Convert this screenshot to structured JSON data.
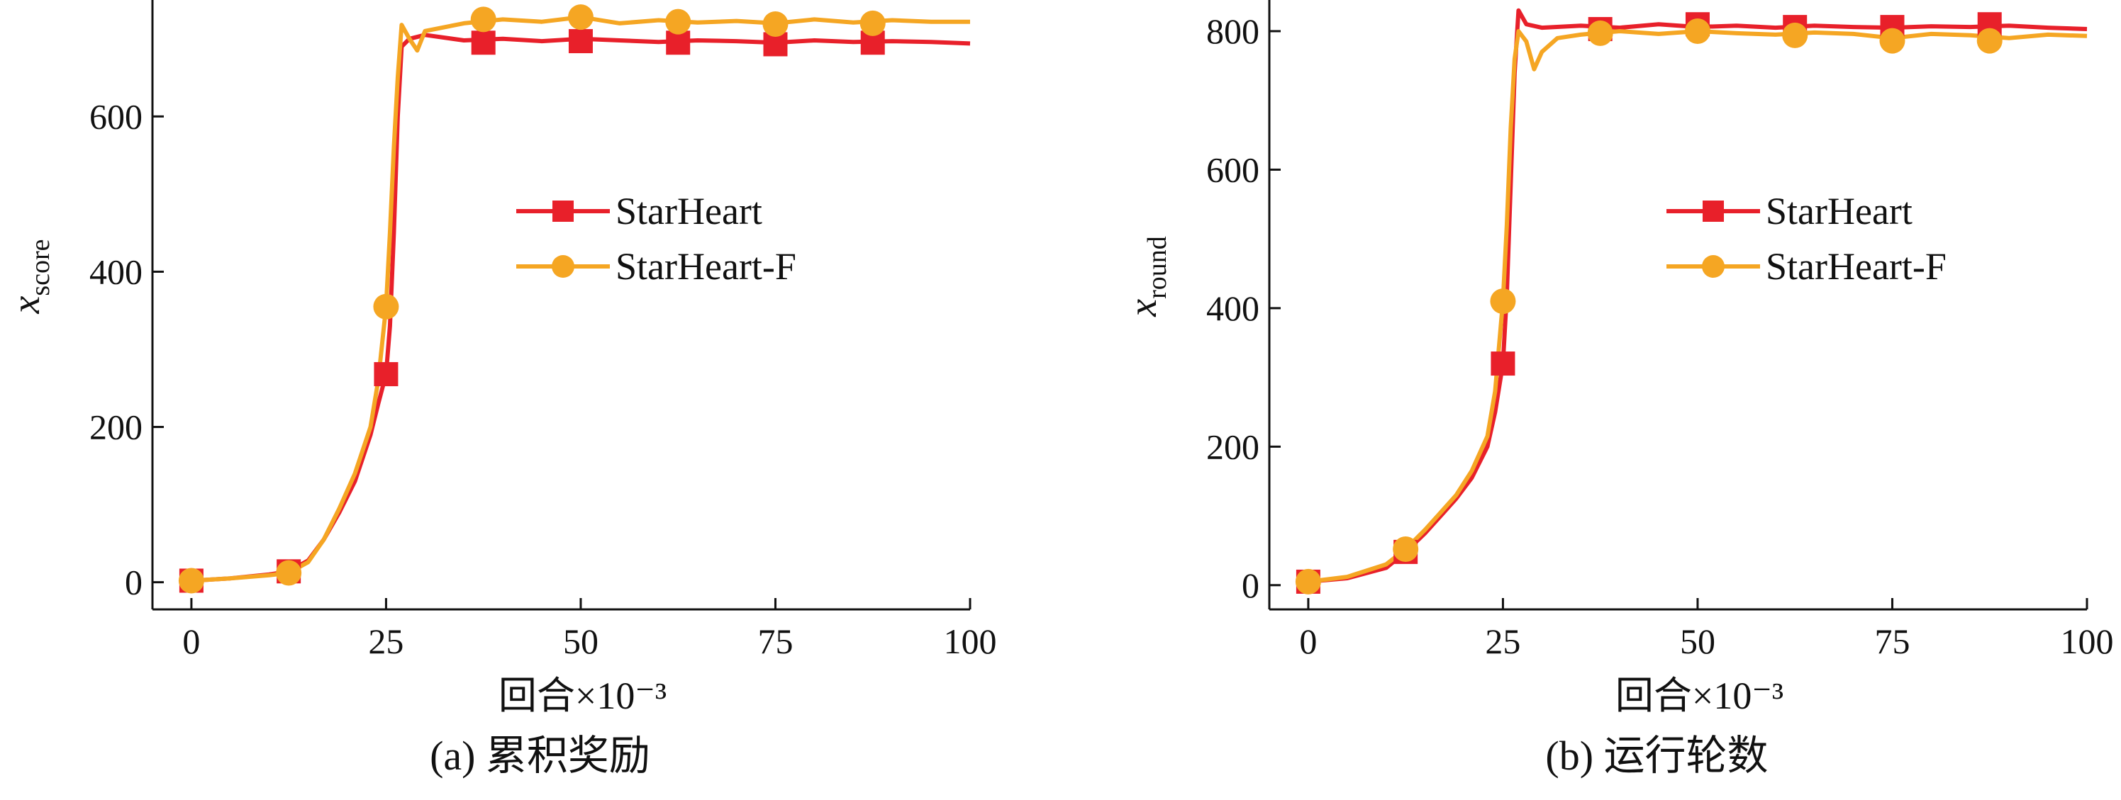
{
  "chart_data": [
    {
      "type": "line",
      "caption": "(a) 累积奖励",
      "xlabel": "回合×10⁻³",
      "ylabel": {
        "base": "x",
        "sub": "score"
      },
      "xlim": [
        -5,
        100
      ],
      "ylim": [
        -35,
        750
      ],
      "x_ticks": [
        0,
        25,
        50,
        75,
        100
      ],
      "y_ticks": [
        0,
        200,
        400,
        600
      ],
      "grid": false,
      "legend_position": "center-right",
      "series": [
        {
          "name": "StarHeart",
          "color": "#e8202a",
          "marker": "square",
          "points": [
            [
              0,
              2
            ],
            [
              5,
              5
            ],
            [
              10,
              10
            ],
            [
              12.5,
              14
            ],
            [
              15,
              28
            ],
            [
              17,
              55
            ],
            [
              19,
              90
            ],
            [
              21,
              130
            ],
            [
              23,
              190
            ],
            [
              24,
              230
            ],
            [
              25,
              268
            ],
            [
              25.5,
              330
            ],
            [
              26,
              450
            ],
            [
              26.5,
              600
            ],
            [
              27,
              690
            ],
            [
              28,
              700
            ],
            [
              30,
              705
            ],
            [
              35,
              698
            ],
            [
              40,
              700
            ],
            [
              45,
              697
            ],
            [
              50,
              700
            ],
            [
              55,
              698
            ],
            [
              60,
              696
            ],
            [
              65,
              698
            ],
            [
              70,
              697
            ],
            [
              75,
              695
            ],
            [
              80,
              698
            ],
            [
              85,
              696
            ],
            [
              90,
              697
            ],
            [
              95,
              696
            ],
            [
              100,
              694
            ]
          ],
          "markers": [
            [
              0,
              2
            ],
            [
              12.5,
              14
            ],
            [
              25,
              268
            ],
            [
              37.5,
              695
            ],
            [
              50,
              697
            ],
            [
              62.5,
              695
            ],
            [
              75,
              693
            ],
            [
              87.5,
              695
            ]
          ]
        },
        {
          "name": "StarHeart-F",
          "color": "#f5a623",
          "marker": "circle",
          "points": [
            [
              0,
              2
            ],
            [
              5,
              5
            ],
            [
              10,
              9
            ],
            [
              12.5,
              12
            ],
            [
              15,
              26
            ],
            [
              17,
              55
            ],
            [
              19,
              95
            ],
            [
              21,
              140
            ],
            [
              23,
              200
            ],
            [
              24,
              260
            ],
            [
              25,
              355
            ],
            [
              25.5,
              450
            ],
            [
              26,
              560
            ],
            [
              26.5,
              650
            ],
            [
              27,
              718
            ],
            [
              28,
              700
            ],
            [
              29,
              685
            ],
            [
              30,
              710
            ],
            [
              35,
              720
            ],
            [
              40,
              725
            ],
            [
              45,
              722
            ],
            [
              50,
              728
            ],
            [
              55,
              720
            ],
            [
              60,
              724
            ],
            [
              65,
              721
            ],
            [
              70,
              723
            ],
            [
              75,
              720
            ],
            [
              80,
              725
            ],
            [
              85,
              721
            ],
            [
              90,
              724
            ],
            [
              95,
              722
            ],
            [
              100,
              722
            ]
          ],
          "markers": [
            [
              0,
              2
            ],
            [
              12.5,
              12
            ],
            [
              25,
              355
            ],
            [
              37.5,
              725
            ],
            [
              50,
              728
            ],
            [
              62.5,
              722
            ],
            [
              75,
              719
            ],
            [
              87.5,
              720
            ]
          ]
        }
      ]
    },
    {
      "type": "line",
      "caption": "(b) 运行轮数",
      "xlabel": "回合×10⁻³",
      "ylabel": {
        "base": "x",
        "sub": "round"
      },
      "xlim": [
        -5,
        100
      ],
      "ylim": [
        -35,
        845
      ],
      "x_ticks": [
        0,
        25,
        50,
        75,
        100
      ],
      "y_ticks": [
        0,
        200,
        400,
        600,
        800
      ],
      "grid": false,
      "legend_position": "center-right",
      "series": [
        {
          "name": "StarHeart",
          "color": "#e8202a",
          "marker": "square",
          "points": [
            [
              0,
              5
            ],
            [
              5,
              10
            ],
            [
              10,
              25
            ],
            [
              12.5,
              48
            ],
            [
              15,
              75
            ],
            [
              17,
              100
            ],
            [
              19,
              125
            ],
            [
              21,
              155
            ],
            [
              23,
              200
            ],
            [
              24,
              250
            ],
            [
              25,
              320
            ],
            [
              25.5,
              420
            ],
            [
              26,
              580
            ],
            [
              26.5,
              740
            ],
            [
              27,
              830
            ],
            [
              28,
              810
            ],
            [
              30,
              805
            ],
            [
              35,
              808
            ],
            [
              40,
              805
            ],
            [
              45,
              810
            ],
            [
              50,
              806
            ],
            [
              55,
              808
            ],
            [
              60,
              805
            ],
            [
              65,
              808
            ],
            [
              70,
              806
            ],
            [
              75,
              805
            ],
            [
              80,
              807
            ],
            [
              85,
              806
            ],
            [
              90,
              808
            ],
            [
              95,
              805
            ],
            [
              100,
              803
            ]
          ],
          "markers": [
            [
              0,
              5
            ],
            [
              12.5,
              48
            ],
            [
              25,
              320
            ],
            [
              37.5,
              803
            ],
            [
              50,
              810
            ],
            [
              62.5,
              806
            ],
            [
              75,
              806
            ],
            [
              87.5,
              810
            ]
          ]
        },
        {
          "name": "StarHeart-F",
          "color": "#f5a623",
          "marker": "circle",
          "points": [
            [
              0,
              5
            ],
            [
              5,
              12
            ],
            [
              10,
              30
            ],
            [
              12.5,
              52
            ],
            [
              15,
              80
            ],
            [
              17,
              105
            ],
            [
              19,
              130
            ],
            [
              21,
              165
            ],
            [
              23,
              215
            ],
            [
              24,
              280
            ],
            [
              25,
              410
            ],
            [
              25.5,
              520
            ],
            [
              26,
              660
            ],
            [
              26.5,
              760
            ],
            [
              27,
              800
            ],
            [
              28,
              785
            ],
            [
              29,
              745
            ],
            [
              30,
              770
            ],
            [
              32,
              790
            ],
            [
              35,
              795
            ],
            [
              40,
              800
            ],
            [
              45,
              796
            ],
            [
              50,
              800
            ],
            [
              55,
              797
            ],
            [
              60,
              795
            ],
            [
              65,
              798
            ],
            [
              70,
              796
            ],
            [
              75,
              790
            ],
            [
              80,
              796
            ],
            [
              85,
              794
            ],
            [
              90,
              790
            ],
            [
              95,
              795
            ],
            [
              100,
              793
            ]
          ],
          "markers": [
            [
              0,
              5
            ],
            [
              12.5,
              52
            ],
            [
              25,
              410
            ],
            [
              37.5,
              797
            ],
            [
              50,
              800
            ],
            [
              62.5,
              794
            ],
            [
              75,
              786
            ],
            [
              87.5,
              786
            ]
          ]
        }
      ]
    }
  ]
}
